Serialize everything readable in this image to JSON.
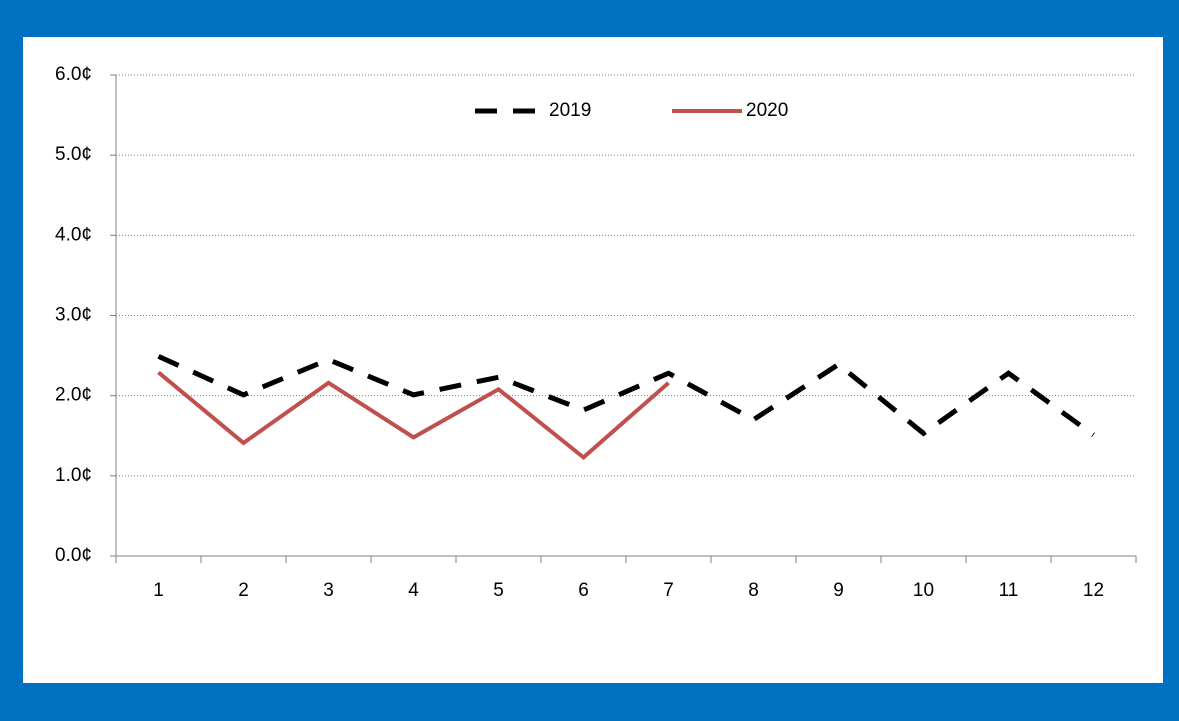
{
  "chart_data": {
    "type": "line",
    "categories": [
      "1",
      "2",
      "3",
      "4",
      "5",
      "6",
      "7",
      "8",
      "9",
      "10",
      "11",
      "12"
    ],
    "series": [
      {
        "name": "2019",
        "color": "#000000",
        "dash": true,
        "values": [
          2.49,
          2.01,
          2.45,
          2.01,
          2.23,
          1.82,
          2.28,
          1.7,
          2.39,
          1.53,
          2.28,
          1.51
        ]
      },
      {
        "name": "2020",
        "color": "#c0504d",
        "dash": false,
        "values": [
          2.29,
          1.41,
          2.16,
          1.48,
          2.08,
          1.23,
          2.16,
          null,
          null,
          null,
          null,
          null
        ]
      }
    ],
    "ylim": [
      0,
      6
    ],
    "yticks": [
      {
        "value": 0,
        "label": "0.0¢"
      },
      {
        "value": 1,
        "label": "1.0¢"
      },
      {
        "value": 2,
        "label": "2.0¢"
      },
      {
        "value": 3,
        "label": "3.0¢"
      },
      {
        "value": 4,
        "label": "4.0¢"
      },
      {
        "value": 5,
        "label": "5.0¢"
      },
      {
        "value": 6,
        "label": "6.0¢"
      }
    ],
    "grid": true,
    "legend": "top"
  }
}
